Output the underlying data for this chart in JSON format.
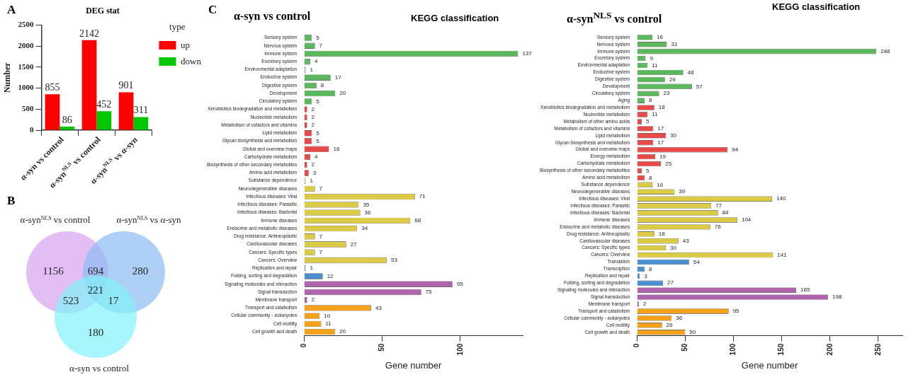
{
  "chart_data": [
    {
      "type": "bar",
      "title": "DEG stat",
      "ylabel": "Number",
      "legend_title": "type",
      "legend": "right",
      "annotations": [
        "A"
      ],
      "categories": [
        "α-syn vs control",
        "α-syn$^{NLS}$ vs control",
        "α-syn$^{NLS}$ vs α-syn"
      ],
      "series": [
        {
          "name": "up",
          "color": "#ff0000",
          "values": [
            855,
            2142,
            901
          ]
        },
        {
          "name": "down",
          "color": "#00c800",
          "values": [
            86,
            452,
            311
          ]
        }
      ],
      "ylim": [
        0,
        2500
      ],
      "yticks": [
        0,
        500,
        1000,
        1500,
        2000,
        2500
      ],
      "grid": false,
      "data_labels": true
    },
    {
      "type": "other",
      "annotations": [
        "B",
        "α-syn$^{NLS}$ vs control",
        "α-syn$^{NLS}$ vs α-syn",
        "α-syn vs control"
      ],
      "values": [
        1156,
        694,
        280,
        221,
        523,
        17,
        180
      ],
      "data_labels": true
    },
    {
      "type": "bar",
      "orientation": "horizontal",
      "title": "α-syn vs control",
      "subtitle": "KEGG classification",
      "xlabel": "Gene number",
      "annotations": [
        "C"
      ],
      "categories": [
        "Sensory system",
        "Nervous system",
        "Immune system",
        "Excretory system",
        "Environmental adaptation",
        "Endocrine system",
        "Digestive system",
        "Development",
        "Circulatory system",
        "Xenobiotics biodegradation and metabolism",
        "Nucleotide metabolism",
        "Metabolism of cofactors and vitamins",
        "Lipid metabolism",
        "Glycan biosynthesis and metabolism",
        "Global and overview maps",
        "Carbohydrate metabolism",
        "Biosynthesis of other secondary metabolites",
        "Amino acid metabolism",
        "Substance dependence",
        "Neurodegenerative diseases",
        "Infectious diseases: Viral",
        "Infectious diseases: Parasitic",
        "Infectious diseases: Bacterial",
        "Immune diseases",
        "Endocrine and metabolic diseases",
        "Drug resistance: Antineoplastic",
        "Cardiovascular diseases",
        "Cancers: Specific types",
        "Cancers: Overview",
        "Replication and repair",
        "Folding, sorting and degradation",
        "Signaling molecules and interaction",
        "Signal transduction",
        "Membrane transport",
        "Transport and catabolism",
        "Cellular community - eukaryotes",
        "Cell motility",
        "Cell growth and death"
      ],
      "values": [
        5,
        7,
        137,
        4,
        1,
        17,
        8,
        20,
        5,
        2,
        2,
        2,
        5,
        5,
        16,
        4,
        2,
        3,
        1,
        7,
        71,
        35,
        36,
        68,
        34,
        7,
        27,
        7,
        53,
        1,
        12,
        95,
        75,
        2,
        43,
        10,
        11,
        20
      ],
      "colors": [
        "#5cb85c",
        "#5cb85c",
        "#5cb85c",
        "#5cb85c",
        "#5cb85c",
        "#5cb85c",
        "#5cb85c",
        "#5cb85c",
        "#5cb85c",
        "#e84a4a",
        "#e84a4a",
        "#e84a4a",
        "#e84a4a",
        "#e84a4a",
        "#e84a4a",
        "#e84a4a",
        "#e84a4a",
        "#e84a4a",
        "#dccb45",
        "#dccb45",
        "#dccb45",
        "#dccb45",
        "#dccb45",
        "#dccb45",
        "#dccb45",
        "#dccb45",
        "#dccb45",
        "#dccb45",
        "#dccb45",
        "#4a90d0",
        "#4a90d0",
        "#b064ae",
        "#b064ae",
        "#b064ae",
        "#f5a11a",
        "#f5a11a",
        "#f5a11a",
        "#f5a11a"
      ],
      "xlim": [
        0,
        140
      ],
      "xticks": [
        0,
        50,
        100
      ],
      "grid": false,
      "data_labels": true
    },
    {
      "type": "bar",
      "orientation": "horizontal",
      "title": "α-syn$^{NLS}$ vs control",
      "subtitle": "KEGG classification",
      "xlabel": "Gene number",
      "categories": [
        "Sensory system",
        "Nervous system",
        "Immune system",
        "Excretory system",
        "Environmental adaptation",
        "Endocrine system",
        "Digestive system",
        "Development",
        "Circulatory system",
        "Aging",
        "Xenobiotics biodegradation and metabolism",
        "Nucleotide metabolism",
        "Metabolism of other amino acids",
        "Metabolism of cofactors and vitamins",
        "Lipid metabolism",
        "Glycan biosynthesis and metabolism",
        "Global and overview maps",
        "Energy metabolism",
        "Carbohydrate metabolism",
        "Biosynthesis of other secondary metabolites",
        "Amino acid metabolism",
        "Substance dependence",
        "Neurodegenerative diseases",
        "Infectious diseases: Viral",
        "Infectious diseases: Parasitic",
        "Infectious diseases: Bacterial",
        "Immune diseases",
        "Endocrine and metabolic diseases",
        "Drug resistance: Antineoplastic",
        "Cardiovascular diseases",
        "Cancers: Specific types",
        "Cancers: Overview",
        "Translation",
        "Transcription",
        "Replication and repair",
        "Folding, sorting and degradation",
        "Signaling molecules and interaction",
        "Signal transduction",
        "Membrane transport",
        "Transport and catabolism",
        "Cellular community - eukaryotes",
        "Cell motility",
        "Cell growth and death"
      ],
      "values": [
        16,
        31,
        248,
        9,
        11,
        48,
        29,
        57,
        23,
        8,
        18,
        11,
        5,
        17,
        30,
        17,
        94,
        19,
        25,
        5,
        8,
        16,
        39,
        140,
        77,
        84,
        104,
        76,
        18,
        43,
        30,
        141,
        54,
        8,
        3,
        27,
        165,
        198,
        2,
        95,
        36,
        26,
        50
      ],
      "colors": [
        "#5cb85c",
        "#5cb85c",
        "#5cb85c",
        "#5cb85c",
        "#5cb85c",
        "#5cb85c",
        "#5cb85c",
        "#5cb85c",
        "#5cb85c",
        "#5cb85c",
        "#e84a4a",
        "#e84a4a",
        "#e84a4a",
        "#e84a4a",
        "#e84a4a",
        "#e84a4a",
        "#e84a4a",
        "#e84a4a",
        "#e84a4a",
        "#e84a4a",
        "#e84a4a",
        "#dccb45",
        "#dccb45",
        "#dccb45",
        "#dccb45",
        "#dccb45",
        "#dccb45",
        "#dccb45",
        "#dccb45",
        "#dccb45",
        "#dccb45",
        "#dccb45",
        "#4a90d0",
        "#4a90d0",
        "#4a90d0",
        "#4a90d0",
        "#b064ae",
        "#b064ae",
        "#b064ae",
        "#f5a11a",
        "#f5a11a",
        "#f5a11a",
        "#f5a11a"
      ],
      "xlim": [
        0,
        275
      ],
      "xticks": [
        0,
        50,
        100,
        150,
        200,
        250
      ],
      "grid": false,
      "data_labels": true
    }
  ]
}
